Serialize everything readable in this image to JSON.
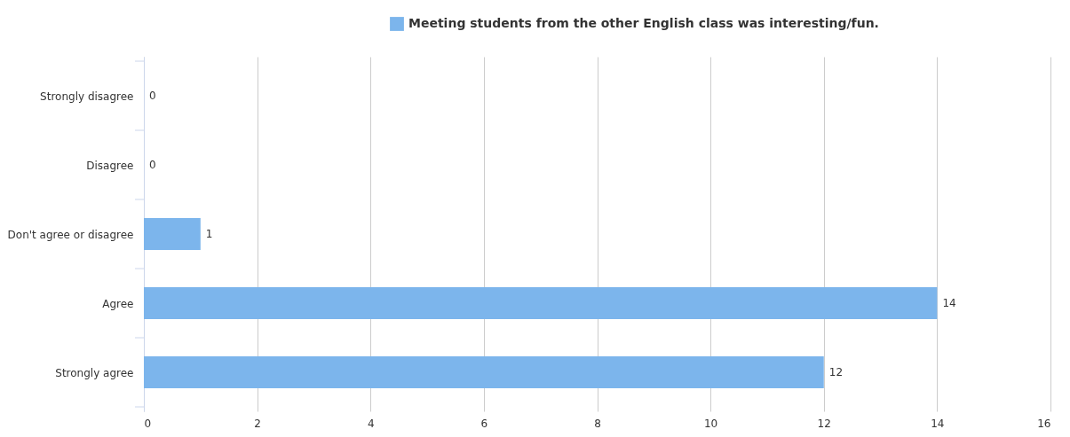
{
  "chart_data": {
    "type": "bar",
    "orientation": "horizontal",
    "categories": [
      "Strongly disagree",
      "Disagree",
      "Don't agree or disagree",
      "Agree",
      "Strongly agree"
    ],
    "series": [
      {
        "name": "Meeting students from the other English class was interesting/fun.",
        "color": "#7cb5ec",
        "values": [
          0,
          0,
          1,
          14,
          12
        ]
      }
    ],
    "xlim": [
      0,
      16
    ],
    "xticks": [
      0,
      2,
      4,
      6,
      8,
      10,
      12,
      14,
      16
    ],
    "grid": "x",
    "legend": "top",
    "data_labels": true
  }
}
